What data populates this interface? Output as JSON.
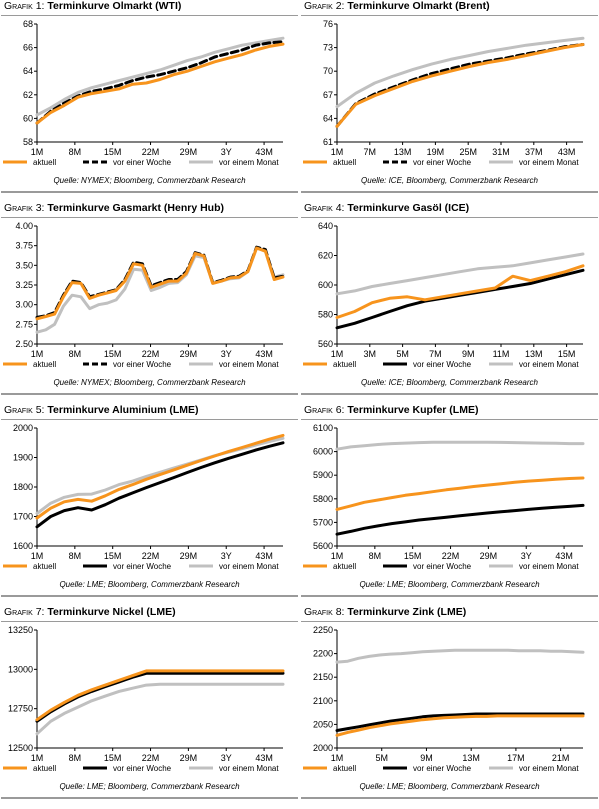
{
  "colors": {
    "aktuell": "#f7941d",
    "woche": "#000000",
    "monat": "#c0c0c0"
  },
  "panels": [
    {
      "label": "Grafik 1:",
      "title": "Terminkurve Olmarkt (WTI)",
      "source": "Quelle: NYMEX; Bloomberg, Commerzbank Research",
      "chart_data": {
        "type": "line",
        "x_ticks": [
          "1M",
          "8M",
          "15M",
          "22M",
          "29M",
          "3Y",
          "43M"
        ],
        "ylim": [
          58,
          68
        ],
        "yticks": [
          58,
          60,
          62,
          64,
          66,
          68
        ],
        "ydecimals": 0,
        "legend_placement": "bottom",
        "series": [
          {
            "name": "aktuell",
            "style": "solid",
            "values": [
              59.6,
              60.5,
              61.1,
              61.8,
              62.1,
              62.3,
              62.5,
              62.9,
              63.0,
              63.3,
              63.7,
              64.0,
              64.4,
              64.8,
              65.1,
              65.4,
              65.8,
              66.1,
              66.3
            ]
          },
          {
            "name": "vor einer Woche",
            "style": "dashed",
            "values": [
              59.6,
              60.6,
              61.3,
              61.9,
              62.3,
              62.5,
              62.8,
              63.2,
              63.5,
              63.7,
              64.0,
              64.3,
              64.7,
              65.2,
              65.5,
              65.8,
              66.2,
              66.4,
              66.5
            ]
          },
          {
            "name": "vor einem Monat",
            "style": "solid",
            "values": [
              60.3,
              60.9,
              61.6,
              62.2,
              62.6,
              62.9,
              63.2,
              63.5,
              63.8,
              64.1,
              64.5,
              64.9,
              65.2,
              65.6,
              65.9,
              66.2,
              66.4,
              66.6,
              66.8
            ]
          }
        ]
      }
    },
    {
      "label": "Grafik 2:",
      "title": "Terminkurve Olmarkt (Brent)",
      "source": "Quelle: ICE, Bloomberg, Commerzbank Research",
      "chart_data": {
        "type": "line",
        "x_ticks": [
          "1M",
          "7M",
          "13M",
          "19M",
          "25M",
          "31M",
          "37M",
          "43M"
        ],
        "ylim": [
          61,
          76
        ],
        "yticks": [
          61,
          64,
          67,
          70,
          73,
          76
        ],
        "ydecimals": 0,
        "legend_placement": "bottom",
        "series": [
          {
            "name": "aktuell",
            "style": "solid",
            "values": [
              63.0,
              65.8,
              66.9,
              67.8,
              68.7,
              69.4,
              70.0,
              70.6,
              71.1,
              71.5,
              72.0,
              72.5,
              73.0,
              73.4
            ]
          },
          {
            "name": "vor einer Woche",
            "style": "dashed",
            "values": [
              63.0,
              65.9,
              67.1,
              68.0,
              68.9,
              69.7,
              70.3,
              70.9,
              71.3,
              71.7,
              72.2,
              72.6,
              73.1,
              73.4
            ]
          },
          {
            "name": "vor einem Monat",
            "style": "solid",
            "values": [
              65.5,
              67.2,
              68.5,
              69.4,
              70.2,
              70.9,
              71.5,
              72.0,
              72.5,
              72.9,
              73.3,
              73.6,
              73.9,
              74.2
            ]
          }
        ]
      }
    },
    {
      "label": "Grafik 3:",
      "title": "Terminkurve Gasmarkt (Henry Hub)",
      "source": "Quelle: NYMEX; Bloomberg, Commerzbank Research",
      "chart_data": {
        "type": "line",
        "x_ticks": [
          "1M",
          "8M",
          "15M",
          "22M",
          "29M",
          "3Y",
          "43M"
        ],
        "ylim": [
          2.5,
          4.0
        ],
        "yticks": [
          2.5,
          2.75,
          3.0,
          3.25,
          3.5,
          3.75,
          4.0
        ],
        "ydecimals": 2,
        "legend_placement": "bottom",
        "series": [
          {
            "name": "aktuell",
            "style": "solid",
            "values": [
              2.82,
              2.85,
              2.88,
              3.1,
              3.28,
              3.27,
              3.08,
              3.12,
              3.15,
              3.18,
              3.3,
              3.52,
              3.5,
              3.22,
              3.26,
              3.3,
              3.3,
              3.4,
              3.65,
              3.62,
              3.27,
              3.3,
              3.34,
              3.35,
              3.42,
              3.72,
              3.68,
              3.32,
              3.35
            ]
          },
          {
            "name": "vor einer Woche",
            "style": "dashed",
            "values": [
              2.84,
              2.86,
              2.9,
              3.12,
              3.3,
              3.28,
              3.1,
              3.13,
              3.16,
              3.19,
              3.32,
              3.54,
              3.52,
              3.24,
              3.28,
              3.32,
              3.32,
              3.42,
              3.66,
              3.63,
              3.28,
              3.31,
              3.35,
              3.36,
              3.43,
              3.73,
              3.7,
              3.34,
              3.36
            ]
          },
          {
            "name": "vor einem Monat",
            "style": "solid",
            "values": [
              2.65,
              2.68,
              2.75,
              2.98,
              3.12,
              3.1,
              2.95,
              3.0,
              3.02,
              3.06,
              3.2,
              3.45,
              3.44,
              3.18,
              3.22,
              3.27,
              3.28,
              3.38,
              3.62,
              3.6,
              3.28,
              3.3,
              3.33,
              3.34,
              3.42,
              3.72,
              3.68,
              3.35,
              3.38
            ]
          }
        ]
      }
    },
    {
      "label": "Grafik 4:",
      "title": "Terminkurve Gasöl (ICE)",
      "source": "Quelle: ICE; Bloomberg, Commerzbank Research",
      "chart_data": {
        "type": "line",
        "x_ticks": [
          "1M",
          "3M",
          "5M",
          "7M",
          "9M",
          "11M",
          "13M",
          "15M"
        ],
        "ylim": [
          560,
          640
        ],
        "yticks": [
          560,
          580,
          600,
          620,
          640
        ],
        "ydecimals": 0,
        "legend_placement": "bottom",
        "series": [
          {
            "name": "aktuell",
            "style": "solid",
            "values": [
              578,
              582,
              588,
              591,
              592,
              590,
              592,
              594,
              596,
              598,
              606,
              603,
              606,
              609,
              613
            ]
          },
          {
            "name": "vor einer Woche",
            "style": "solid",
            "values": [
              571,
              574,
              578,
              582,
              586,
              589,
              591,
              593,
              595,
              597,
              599,
              601,
              604,
              607,
              610
            ]
          },
          {
            "name": "vor einem Monat",
            "style": "solid",
            "values": [
              594,
              596,
              599,
              601,
              603,
              605,
              607,
              609,
              611,
              612,
              613,
              615,
              617,
              619,
              621
            ]
          }
        ]
      }
    },
    {
      "label": "Grafik 5:",
      "title": "Terminkurve Aluminium (LME)",
      "source": "Quelle: LME; Bloomberg, Commerzbank Research",
      "chart_data": {
        "type": "line",
        "x_ticks": [
          "1M",
          "8M",
          "15M",
          "22M",
          "29M",
          "3Y",
          "43M"
        ],
        "ylim": [
          1600,
          2000
        ],
        "yticks": [
          1600,
          1700,
          1800,
          1900,
          2000
        ],
        "ydecimals": 0,
        "legend_placement": "bottom",
        "series": [
          {
            "name": "aktuell",
            "style": "solid",
            "values": [
              1695,
              1728,
              1750,
              1758,
              1752,
              1770,
              1792,
              1808,
              1826,
              1842,
              1858,
              1874,
              1890,
              1905,
              1920,
              1934,
              1948,
              1962,
              1975
            ]
          },
          {
            "name": "vor einer Woche",
            "style": "solid",
            "values": [
              1665,
              1700,
              1720,
              1730,
              1722,
              1740,
              1762,
              1780,
              1798,
              1815,
              1832,
              1849,
              1866,
              1882,
              1897,
              1911,
              1925,
              1938,
              1950
            ]
          },
          {
            "name": "vor einem Monat",
            "style": "solid",
            "values": [
              1710,
              1745,
              1765,
              1775,
              1776,
              1790,
              1808,
              1820,
              1836,
              1850,
              1864,
              1878,
              1892,
              1906,
              1918,
              1930,
              1942,
              1954,
              1965
            ]
          }
        ]
      }
    },
    {
      "label": "Grafik 6:",
      "title": "Terminkurve Kupfer (LME)",
      "source": "Quelle: LME; Bloomberg, Commerzbank Research",
      "chart_data": {
        "type": "line",
        "x_ticks": [
          "1M",
          "8M",
          "15M",
          "22M",
          "29M",
          "3Y",
          "43M"
        ],
        "ylim": [
          5600,
          6100
        ],
        "yticks": [
          5600,
          5700,
          5800,
          5900,
          6000,
          6100
        ],
        "ydecimals": 0,
        "legend_placement": "bottom",
        "series": [
          {
            "name": "aktuell",
            "style": "solid",
            "values": [
              5755,
              5770,
              5785,
              5795,
              5805,
              5815,
              5822,
              5830,
              5838,
              5845,
              5852,
              5858,
              5864,
              5870,
              5875,
              5879,
              5883,
              5886,
              5888
            ]
          },
          {
            "name": "vor einer Woche",
            "style": "solid",
            "values": [
              5650,
              5662,
              5675,
              5685,
              5695,
              5702,
              5710,
              5716,
              5722,
              5728,
              5734,
              5740,
              5745,
              5750,
              5755,
              5760,
              5764,
              5768,
              5772
            ]
          },
          {
            "name": "vor einem Monat",
            "style": "solid",
            "values": [
              6010,
              6020,
              6025,
              6030,
              6034,
              6036,
              6038,
              6040,
              6040,
              6040,
              6040,
              6040,
              6039,
              6038,
              6037,
              6036,
              6035,
              6034,
              6034
            ]
          }
        ]
      }
    },
    {
      "label": "Grafik 7:",
      "title": "Terminkurve Nickel (LME)",
      "source": "Quelle: LME; Bloomberg, Commerzbank Research",
      "chart_data": {
        "type": "line",
        "x_ticks": [
          "1M",
          "8M",
          "15M",
          "22M",
          "29M",
          "3Y",
          "43M"
        ],
        "ylim": [
          12500,
          13250
        ],
        "yticks": [
          12500,
          12750,
          13000,
          13250
        ],
        "ydecimals": 0,
        "legend_placement": "bottom",
        "series": [
          {
            "name": "aktuell",
            "style": "solid",
            "values": [
              12680,
              12740,
              12790,
              12835,
              12870,
              12900,
              12930,
              12960,
              12990,
              12990,
              12990,
              12990,
              12990,
              12990,
              12990,
              12990,
              12990,
              12990,
              12990
            ]
          },
          {
            "name": "vor einer Woche",
            "style": "solid",
            "values": [
              12670,
              12730,
              12780,
              12825,
              12860,
              12890,
              12920,
              12950,
              12975,
              12975,
              12975,
              12975,
              12975,
              12975,
              12975,
              12975,
              12975,
              12975,
              12975
            ]
          },
          {
            "name": "vor einem Monat",
            "style": "solid",
            "values": [
              12590,
              12670,
              12720,
              12760,
              12800,
              12830,
              12860,
              12880,
              12900,
              12905,
              12905,
              12905,
              12905,
              12905,
              12905,
              12905,
              12905,
              12905,
              12905
            ]
          }
        ]
      }
    },
    {
      "label": "Grafik 8:",
      "title": "Terminkurve Zink (LME)",
      "source": "Quelle: LME; Bloomberg, Commerzbank Research",
      "chart_data": {
        "type": "line",
        "x_ticks": [
          "1M",
          "5M",
          "9M",
          "13M",
          "17M",
          "21M"
        ],
        "ylim": [
          2000,
          2250
        ],
        "yticks": [
          2000,
          2050,
          2100,
          2150,
          2200,
          2250
        ],
        "ydecimals": 0,
        "legend_placement": "bottom",
        "series": [
          {
            "name": "aktuell",
            "style": "solid",
            "values": [
              2027,
              2033,
              2038,
              2043,
              2047,
              2051,
              2054,
              2057,
              2060,
              2062,
              2064,
              2065,
              2066,
              2067,
              2067,
              2068,
              2068,
              2068,
              2068,
              2068,
              2068,
              2068,
              2068,
              2068
            ]
          },
          {
            "name": "vor einer Woche",
            "style": "solid",
            "values": [
              2037,
              2041,
              2045,
              2049,
              2053,
              2057,
              2060,
              2063,
              2066,
              2068,
              2069,
              2070,
              2071,
              2072,
              2072,
              2072,
              2072,
              2072,
              2072,
              2072,
              2072,
              2072,
              2072,
              2072
            ]
          },
          {
            "name": "vor einem Monat",
            "style": "solid",
            "values": [
              2182,
              2184,
              2190,
              2194,
              2197,
              2199,
              2200,
              2202,
              2204,
              2205,
              2206,
              2207,
              2207,
              2207,
              2207,
              2207,
              2207,
              2206,
              2206,
              2206,
              2205,
              2205,
              2204,
              2203
            ]
          }
        ]
      }
    }
  ]
}
